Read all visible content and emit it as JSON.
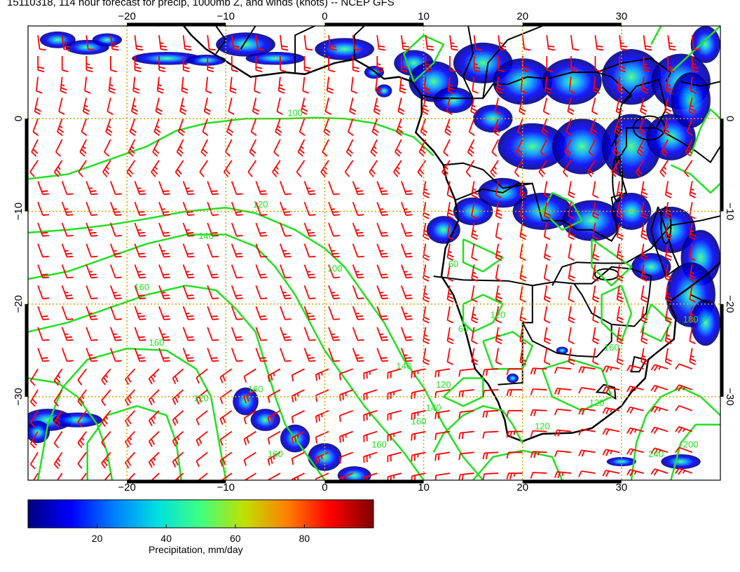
{
  "title": "15110318, 114 hour forecast for precip, 1000mb Z, and winds (knots) -- NCEP GFS",
  "map": {
    "lon_range": [
      -30,
      40
    ],
    "lat_range": [
      -39,
      10
    ],
    "lon_ticks": [
      -20,
      -10,
      0,
      10,
      20,
      30
    ],
    "lat_ticks": [
      0,
      -10,
      -20,
      -30
    ],
    "lon_tick_labels": [
      "−20",
      "−10",
      "0",
      "10",
      "20",
      "30"
    ],
    "lat_tick_labels": [
      "0",
      "−10",
      "−20",
      "−30"
    ],
    "grid": "dotted",
    "grid_color": "#d4a100",
    "contour_color": "#22e022",
    "barb_color": "#ff0000",
    "land_outline_color": "#000000",
    "contour_labels": [
      "100",
      "120",
      "140",
      "160",
      "160",
      "160",
      "120",
      "100",
      "140",
      "120",
      "140",
      "160",
      "160",
      "160",
      "240",
      "200",
      "120",
      "60",
      "160",
      "60",
      "120",
      "120",
      "180"
    ],
    "features": [
      "precipitation",
      "1000mb-geopotential-height-contours",
      "wind-barbs",
      "coastlines",
      "country-borders"
    ]
  },
  "colorbar": {
    "label": "Precipitation, mm/day",
    "ticks": [
      "20",
      "40",
      "60",
      "80"
    ],
    "tick_values": [
      20,
      40,
      60,
      80
    ],
    "range": [
      0,
      100
    ],
    "colors": [
      "#000080",
      "#0000ff",
      "#0080ff",
      "#00e0e0",
      "#40ff80",
      "#c0e000",
      "#ff8000",
      "#ff0000",
      "#800000"
    ]
  }
}
